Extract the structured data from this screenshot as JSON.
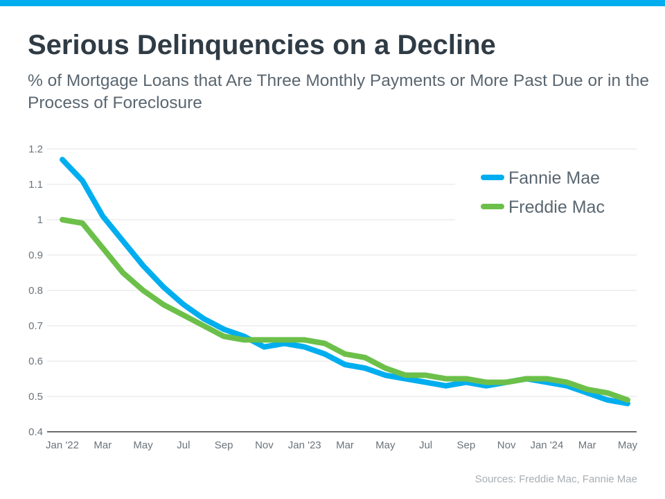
{
  "header": {
    "title": "Serious Delinquencies on a Decline",
    "subtitle": "% of Mortgage Loans that Are Three Monthly Payments or More Past Due or in the Process of Foreclosure"
  },
  "footer": {
    "sources": "Sources: Freddie Mac, Fannie Mae"
  },
  "colors": {
    "accent_bar": "#00aeef",
    "fannie": "#00aeef",
    "freddie": "#6cc04a",
    "grid": "#e3e3e3",
    "axis": "#3a3a3a"
  },
  "chart_data": {
    "type": "line",
    "title": "Serious Delinquencies on a Decline",
    "subtitle": "% of Mortgage Loans that Are Three Monthly Payments or More Past Due or in the Process of Foreclosure",
    "x": [
      "Jan '22",
      "Feb '22",
      "Mar '22",
      "Apr '22",
      "May '22",
      "Jun '22",
      "Jul '22",
      "Aug '22",
      "Sep '22",
      "Oct '22",
      "Nov '22",
      "Dec '22",
      "Jan '23",
      "Feb '23",
      "Mar '23",
      "Apr '23",
      "May '23",
      "Jun '23",
      "Jul '23",
      "Aug '23",
      "Sep '23",
      "Oct '23",
      "Nov '23",
      "Dec '23",
      "Jan '24",
      "Feb '24",
      "Mar '24",
      "Apr '24",
      "May '24"
    ],
    "x_tick_labels": [
      "Jan '22",
      "Mar",
      "May",
      "Jul",
      "Sep",
      "Nov",
      "Jan '23",
      "Mar",
      "May",
      "Jul",
      "Sep",
      "Nov",
      "Jan '24",
      "Mar",
      "May"
    ],
    "y_ticks": [
      "0.4",
      "0.5",
      "0.6",
      "0.7",
      "0.8",
      "0.9",
      "1",
      "1.1",
      "1.2"
    ],
    "ylim": [
      0.4,
      1.2
    ],
    "grid": true,
    "legend_position": "top-right",
    "series": [
      {
        "name": "Fannie Mae",
        "color": "#00aeef",
        "values": [
          1.17,
          1.11,
          1.01,
          0.94,
          0.87,
          0.81,
          0.76,
          0.72,
          0.69,
          0.67,
          0.64,
          0.65,
          0.64,
          0.62,
          0.59,
          0.58,
          0.56,
          0.55,
          0.54,
          0.53,
          0.54,
          0.53,
          0.54,
          0.55,
          0.54,
          0.53,
          0.51,
          0.49,
          0.48
        ]
      },
      {
        "name": "Freddie Mac",
        "color": "#6cc04a",
        "values": [
          1.0,
          0.99,
          0.92,
          0.85,
          0.8,
          0.76,
          0.73,
          0.7,
          0.67,
          0.66,
          0.66,
          0.66,
          0.66,
          0.65,
          0.62,
          0.61,
          0.58,
          0.56,
          0.56,
          0.55,
          0.55,
          0.54,
          0.54,
          0.55,
          0.55,
          0.54,
          0.52,
          0.51,
          0.49
        ]
      }
    ]
  }
}
